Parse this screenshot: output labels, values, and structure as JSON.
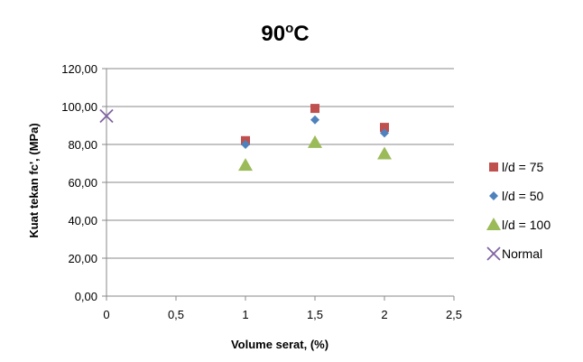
{
  "chart_data": {
    "type": "scatter",
    "title": "90",
    "title_superscript": "o",
    "title_suffix": "C",
    "xlabel": "Volume serat, (%)",
    "ylabel": "Kuat tekan fc', (MPa)",
    "xlim": [
      0,
      2.5
    ],
    "ylim": [
      0,
      120
    ],
    "x_ticks": [
      0,
      0.5,
      1,
      1.5,
      2,
      2.5
    ],
    "x_tick_labels": [
      "0",
      "0,5",
      "1",
      "1,5",
      "2",
      "2,5"
    ],
    "y_ticks": [
      0,
      20,
      40,
      60,
      80,
      100,
      120
    ],
    "y_tick_labels": [
      "0,00",
      "20,00",
      "40,00",
      "60,00",
      "80,00",
      "100,00",
      "120,00"
    ],
    "grid": "horizontal",
    "legend_position": "right",
    "series": [
      {
        "name": "l/d = 75",
        "marker": "square",
        "color": "#c0504d",
        "points": [
          [
            1,
            82
          ],
          [
            1.5,
            99
          ],
          [
            2,
            89
          ]
        ]
      },
      {
        "name": "l/d = 50",
        "marker": "diamond",
        "color": "#4f81bd",
        "points": [
          [
            1,
            80
          ],
          [
            1.5,
            93
          ],
          [
            2,
            86
          ]
        ]
      },
      {
        "name": "l/d = 100",
        "marker": "triangle",
        "color": "#9bbb59",
        "points": [
          [
            1,
            69
          ],
          [
            1.5,
            81
          ],
          [
            2,
            75
          ]
        ]
      },
      {
        "name": "Normal",
        "marker": "x",
        "color": "#8064a2",
        "points": [
          [
            0,
            95
          ]
        ]
      }
    ]
  }
}
